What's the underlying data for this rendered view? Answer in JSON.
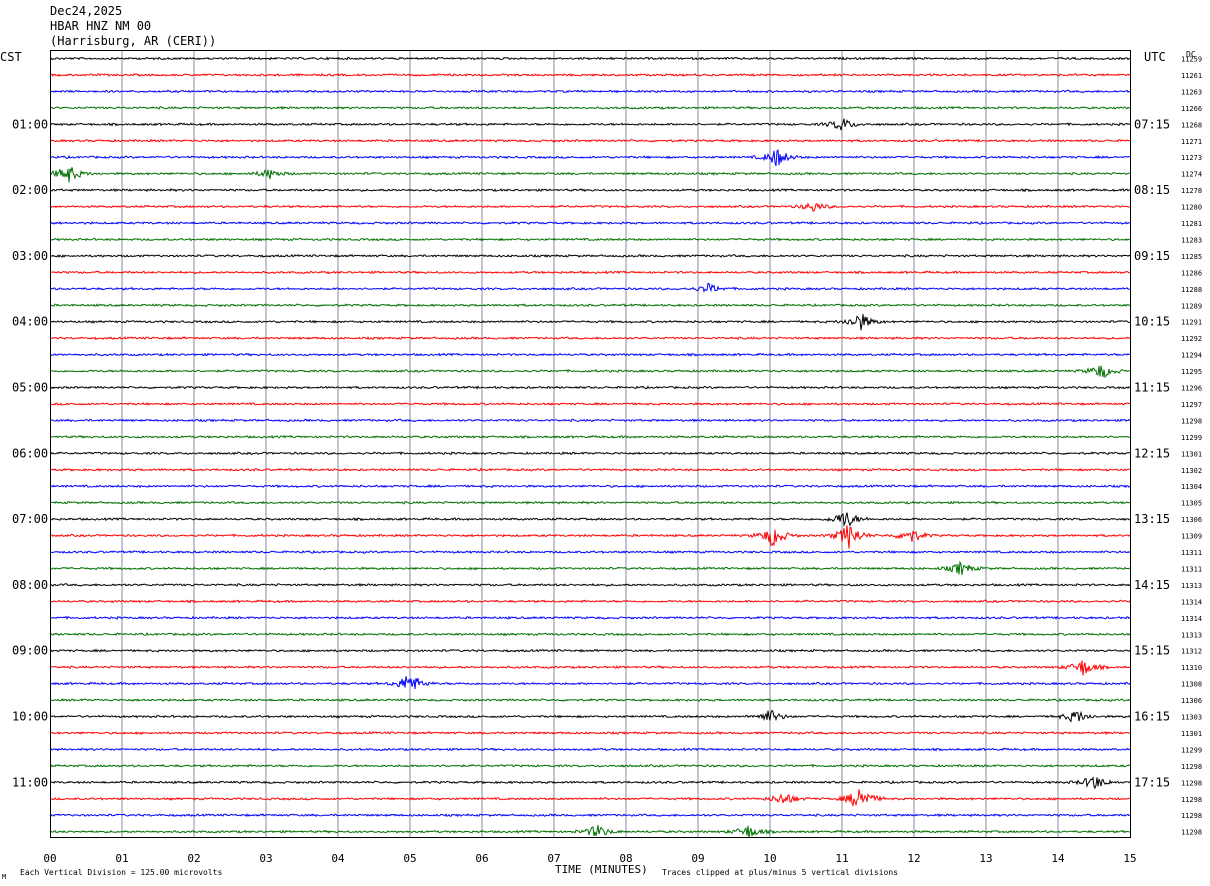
{
  "header": {
    "date": "Dec24,2025",
    "station": "HBAR HNZ NM 00",
    "location": "(Harrisburg, AR (CERI))"
  },
  "left_tz": "CST",
  "right_tz": "UTC",
  "dc_label": "DC",
  "footer": {
    "scale_note": "Each Vertical Division =  125.00 microvolts",
    "x_title": "TIME (MINUTES)",
    "clip_note": "Traces clipped at plus/minus 5 vertical divisions",
    "corner_mark": "M"
  },
  "chart_data": {
    "type": "line",
    "x_label": "TIME (MINUTES)",
    "x_ticks": [
      "00",
      "01",
      "02",
      "03",
      "04",
      "05",
      "06",
      "07",
      "08",
      "09",
      "10",
      "11",
      "12",
      "13",
      "14",
      "15"
    ],
    "xlim": [
      0,
      15
    ],
    "trace_colors": [
      "#000000",
      "#ff0000",
      "#0000ff",
      "#007000"
    ],
    "left_hour_labels": [
      "01:00",
      "02:00",
      "03:00",
      "04:00",
      "05:00",
      "06:00",
      "07:00",
      "08:00",
      "09:00",
      "10:00",
      "11:00"
    ],
    "right_hour_labels": [
      "07:15",
      "08:15",
      "09:15",
      "10:15",
      "11:15",
      "12:15",
      "13:15",
      "14:15",
      "15:15",
      "16:15",
      "17:15"
    ],
    "dc_offsets": [
      "11259",
      "11261",
      "11263",
      "11266",
      "11268",
      "11271",
      "11273",
      "11274",
      "11278",
      "11280",
      "11281",
      "11283",
      "11285",
      "11286",
      "11288",
      "11289",
      "11291",
      "11292",
      "11294",
      "11295",
      "11296",
      "11297",
      "11298",
      "11299",
      "11301",
      "11302",
      "11304",
      "11305",
      "11306",
      "11309",
      "11311",
      "11311",
      "11313",
      "11314",
      "11314",
      "11313",
      "11312",
      "11310",
      "11308",
      "11306",
      "11303",
      "11301",
      "11299",
      "11298",
      "11298",
      "11298",
      "11298",
      "11298"
    ],
    "events": [
      {
        "trace": 4,
        "minute": 11.0,
        "amp": 7
      },
      {
        "trace": 6,
        "minute": 10.1,
        "amp": 10
      },
      {
        "trace": 7,
        "minute": 0.25,
        "amp": 10
      },
      {
        "trace": 7,
        "minute": 3.05,
        "amp": 5
      },
      {
        "trace": 9,
        "minute": 10.6,
        "amp": 5
      },
      {
        "trace": 14,
        "minute": 9.15,
        "amp": 5
      },
      {
        "trace": 16,
        "minute": 11.25,
        "amp": 10
      },
      {
        "trace": 19,
        "minute": 14.6,
        "amp": 8
      },
      {
        "trace": 28,
        "minute": 11.05,
        "amp": 10
      },
      {
        "trace": 29,
        "minute": 10.05,
        "amp": 12
      },
      {
        "trace": 29,
        "minute": 11.1,
        "amp": 14
      },
      {
        "trace": 29,
        "minute": 11.95,
        "amp": 8
      },
      {
        "trace": 31,
        "minute": 12.65,
        "amp": 7
      },
      {
        "trace": 37,
        "minute": 14.35,
        "amp": 9
      },
      {
        "trace": 38,
        "minute": 5.0,
        "amp": 12
      },
      {
        "trace": 40,
        "minute": 10.0,
        "amp": 7
      },
      {
        "trace": 40,
        "minute": 14.25,
        "amp": 7
      },
      {
        "trace": 44,
        "minute": 14.5,
        "amp": 8
      },
      {
        "trace": 45,
        "minute": 11.25,
        "amp": 14
      },
      {
        "trace": 45,
        "minute": 10.2,
        "amp": 7
      },
      {
        "trace": 47,
        "minute": 7.6,
        "amp": 7
      },
      {
        "trace": 47,
        "minute": 9.7,
        "amp": 7
      }
    ]
  }
}
